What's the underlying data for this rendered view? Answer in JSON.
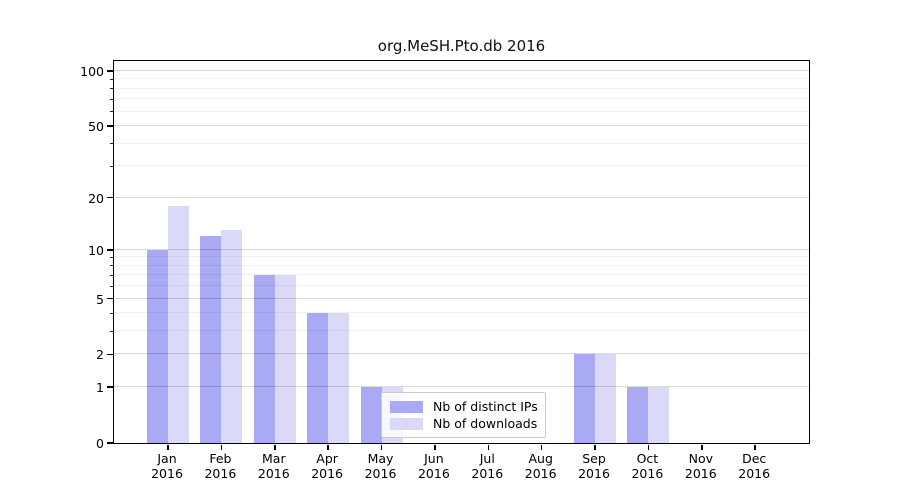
{
  "chart_data": {
    "type": "bar",
    "title": "org.MeSH.Pto.db 2016",
    "categories": [
      "Jan\n2016",
      "Feb\n2016",
      "Mar\n2016",
      "Apr\n2016",
      "May\n2016",
      "Jun\n2016",
      "Jul\n2016",
      "Aug\n2016",
      "Sep\n2016",
      "Oct\n2016",
      "Nov\n2016",
      "Dec\n2016"
    ],
    "series": [
      {
        "name": "Nb of distinct IPs",
        "color": "#a9a9f4",
        "values": [
          10,
          12,
          7,
          4,
          1,
          0,
          0,
          0,
          2,
          1,
          0,
          0
        ]
      },
      {
        "name": "Nb of downloads",
        "color": "#dadaf8",
        "values": [
          18,
          13,
          7,
          4,
          1,
          0,
          0,
          0,
          2,
          1,
          0,
          0
        ]
      }
    ],
    "xlabel": "",
    "ylabel": "",
    "yscale": "log1p",
    "yticks": [
      0,
      1,
      2,
      5,
      10,
      20,
      50,
      100
    ],
    "minor_yticks": [
      3,
      4,
      6,
      7,
      8,
      9,
      30,
      40,
      60,
      70,
      80,
      90
    ],
    "ylim": [
      0,
      116
    ],
    "grid": "on",
    "legend_position": "inside-lower-center"
  },
  "colors": {
    "bar_distinct_ips": "#a9a9f4",
    "bar_downloads": "#dadaf8",
    "axis": "#000000",
    "grid_major": "rgba(0,0,0,0.15)",
    "grid_minor": "rgba(0,0,0,0.055)",
    "legend_border": "#cccccc",
    "legend_bg": "rgba(255,255,255,0.8)"
  }
}
